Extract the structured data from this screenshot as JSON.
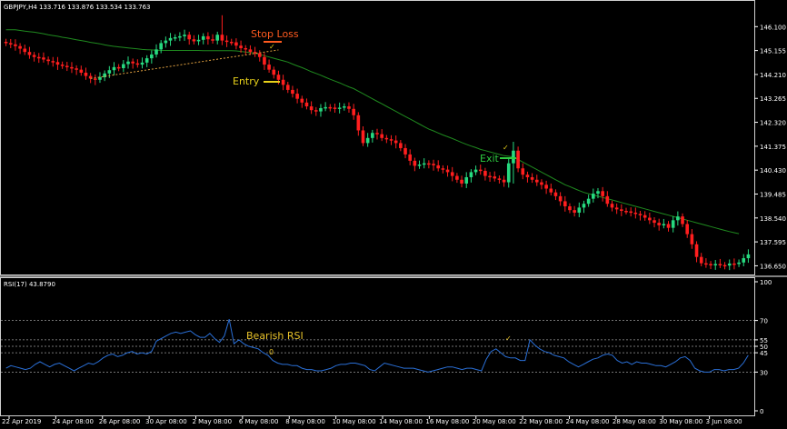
{
  "header": {
    "symbol_info": "GBPJPY,H4  133.716 133.876 133.534 133.763"
  },
  "rsi_header": "RSI(17) 43.8790",
  "colors": {
    "background": "#000000",
    "bull": "#26d97f",
    "bear": "#ff1e1e",
    "ma": "#1f8a1f",
    "rsi": "#2a6fd6",
    "trendline": "#e0a040",
    "stop_loss": "#ff5a1f",
    "entry": "#e8d11a",
    "exit": "#2ecc40",
    "bearish_rsi": "#e8c22a",
    "axis_text": "#ffffff",
    "levels": "#9a9a9a"
  },
  "annotations": {
    "stop_loss": "Stop Loss",
    "entry": "Entry",
    "exit": "Exit",
    "bearish_rsi": "Bearish RSI",
    "zero_marker": "0"
  },
  "chart_data": [
    {
      "type": "candlestick",
      "title": "GBPJPY,H4",
      "price_ticks": [
        "146.100",
        "145.155",
        "144.210",
        "143.265",
        "142.320",
        "141.375",
        "140.430",
        "139.485",
        "138.540",
        "137.595",
        "136.650"
      ],
      "price_tick_values": [
        146.1,
        145.155,
        144.21,
        143.265,
        142.32,
        141.375,
        140.43,
        139.485,
        138.54,
        137.595,
        136.65
      ],
      "ylim": [
        136.45,
        146.65
      ],
      "x_labels": [
        "22 Apr 2019",
        "24 Apr 08:00",
        "26 Apr 08:00",
        "30 Apr 08:00",
        "2 May 08:00",
        "6 May 08:00",
        "8 May 08:00",
        "10 May 08:00",
        "14 May 08:00",
        "16 May 08:00",
        "20 May 08:00",
        "22 May 08:00",
        "24 May 08:00",
        "28 May 08:00",
        "30 May 08:00",
        "3 Jun 08:00"
      ],
      "close": [
        145.45,
        145.4,
        145.33,
        145.23,
        145.1,
        144.98,
        144.9,
        144.88,
        144.8,
        144.74,
        144.7,
        144.6,
        144.55,
        144.5,
        144.45,
        144.4,
        144.28,
        144.15,
        144.05,
        144.0,
        144.1,
        144.25,
        144.38,
        144.5,
        144.46,
        144.62,
        144.72,
        144.65,
        144.6,
        144.68,
        144.85,
        145.0,
        145.2,
        145.45,
        145.55,
        145.65,
        145.68,
        145.72,
        145.78,
        145.6,
        145.52,
        145.58,
        145.72,
        145.6,
        145.55,
        145.78,
        145.55,
        145.5,
        145.48,
        145.35,
        145.25,
        145.2,
        145.1,
        145.05,
        144.9,
        144.6,
        144.4,
        144.2,
        144.0,
        143.8,
        143.6,
        143.45,
        143.25,
        143.1,
        142.95,
        142.8,
        142.75,
        142.88,
        142.92,
        142.9,
        142.88,
        142.9,
        142.95,
        142.85,
        142.6,
        142.0,
        141.5,
        141.7,
        141.9,
        141.85,
        141.7,
        141.65,
        141.6,
        141.5,
        141.3,
        141.05,
        140.8,
        140.6,
        140.65,
        140.7,
        140.68,
        140.62,
        140.5,
        140.45,
        140.35,
        140.2,
        140.05,
        139.9,
        140.15,
        140.35,
        140.45,
        140.4,
        140.2,
        140.18,
        140.1,
        140.05,
        139.95,
        140.7,
        141.2,
        140.5,
        140.25,
        140.15,
        140.05,
        139.95,
        139.85,
        139.7,
        139.55,
        139.4,
        139.2,
        139.0,
        138.85,
        138.75,
        138.95,
        139.1,
        139.3,
        139.5,
        139.6,
        139.4,
        139.1,
        138.95,
        138.88,
        138.82,
        138.8,
        138.75,
        138.7,
        138.65,
        138.55,
        138.45,
        138.35,
        138.25,
        138.3,
        138.15,
        138.45,
        138.6,
        138.3,
        137.9,
        137.5,
        137.0,
        136.75,
        136.72,
        136.7,
        136.72,
        136.68,
        136.66,
        136.74,
        136.72,
        136.78,
        136.95,
        137.1
      ],
      "moving_average": [
        145.98,
        145.98,
        145.98,
        145.95,
        145.92,
        145.9,
        145.88,
        145.85,
        145.82,
        145.78,
        145.75,
        145.72,
        145.68,
        145.65,
        145.62,
        145.58,
        145.55,
        145.52,
        145.48,
        145.45,
        145.42,
        145.38,
        145.35,
        145.32,
        145.3,
        145.28,
        145.26,
        145.24,
        145.22,
        145.2,
        145.19,
        145.18,
        145.17,
        145.16,
        145.16,
        145.16,
        145.16,
        145.16,
        145.16,
        145.16,
        145.16,
        145.16,
        145.15,
        145.15,
        145.15,
        145.15,
        145.15,
        145.15,
        145.15,
        145.14,
        145.12,
        145.1,
        145.08,
        145.05,
        145.0,
        144.95,
        144.9,
        144.85,
        144.8,
        144.75,
        144.7,
        144.62,
        144.55,
        144.48,
        144.4,
        144.32,
        144.25,
        144.18,
        144.1,
        144.02,
        143.95,
        143.88,
        143.8,
        143.72,
        143.65,
        143.55,
        143.45,
        143.35,
        143.25,
        143.15,
        143.05,
        142.95,
        142.85,
        142.75,
        142.65,
        142.55,
        142.45,
        142.35,
        142.25,
        142.15,
        142.05,
        141.98,
        141.9,
        141.82,
        141.75,
        141.68,
        141.6,
        141.52,
        141.45,
        141.38,
        141.32,
        141.25,
        141.2,
        141.15,
        141.1,
        141.05,
        141.0,
        140.98,
        140.95,
        140.85,
        140.75,
        140.65,
        140.55,
        140.45,
        140.35,
        140.25,
        140.15,
        140.05,
        139.95,
        139.85,
        139.78,
        139.7,
        139.62,
        139.55,
        139.5,
        139.45,
        139.4,
        139.35,
        139.3,
        139.25,
        139.2,
        139.15,
        139.1,
        139.05,
        139.0,
        138.95,
        138.9,
        138.85,
        138.8,
        138.75,
        138.7,
        138.65,
        138.6,
        138.55,
        138.5,
        138.45,
        138.4,
        138.35,
        138.3,
        138.25,
        138.2,
        138.15,
        138.1,
        138.05,
        138.0,
        137.96,
        137.92
      ],
      "trendline": {
        "from": [
          18,
          144.05
        ],
        "to": [
          58,
          145.18
        ]
      },
      "exit_level": 140.82,
      "stop_loss_level": 145.48,
      "entry_level": 144.05
    },
    {
      "type": "line",
      "title": "RSI(17) 43.8790",
      "series": [
        {
          "name": "RSI(17)",
          "values": [
            33,
            35,
            34,
            33,
            32,
            33,
            36,
            38,
            36,
            34,
            36,
            37,
            35,
            33,
            31,
            33,
            35,
            37,
            36,
            38,
            41,
            43,
            44,
            42,
            43,
            45,
            46,
            44,
            45,
            44,
            46,
            54,
            56,
            58,
            60,
            61,
            60,
            61,
            62,
            59,
            57,
            57,
            60,
            56,
            53,
            58,
            71,
            52,
            55,
            52,
            50,
            49,
            48,
            45,
            43,
            39,
            37,
            36,
            36,
            35,
            35,
            33,
            32,
            32,
            31,
            31,
            32,
            33,
            35,
            36,
            36,
            37,
            37,
            36,
            35,
            32,
            31,
            34,
            37,
            36,
            35,
            34,
            33,
            33,
            33,
            32,
            31,
            30,
            31,
            32,
            33,
            34,
            34,
            33,
            32,
            33,
            33,
            32,
            31,
            40,
            46,
            48,
            45,
            42,
            41,
            41,
            39,
            39,
            55,
            51,
            48,
            46,
            45,
            43,
            42,
            41,
            38,
            36,
            34,
            36,
            38,
            40,
            41,
            43,
            44,
            43,
            39,
            37,
            38,
            36,
            38,
            37,
            37,
            36,
            35,
            35,
            34,
            36,
            38,
            41,
            42,
            39,
            33,
            31,
            30,
            30,
            32,
            32,
            31,
            32,
            32,
            33,
            37,
            43
          ]
        }
      ],
      "levels": [
        100,
        70,
        55,
        50,
        45,
        30,
        0
      ],
      "level_labels": [
        "100",
        "70",
        "55",
        "50",
        "45",
        "30",
        "0"
      ],
      "ylim": [
        0,
        100
      ],
      "bearish_rsi_marker_index": 109
    }
  ]
}
